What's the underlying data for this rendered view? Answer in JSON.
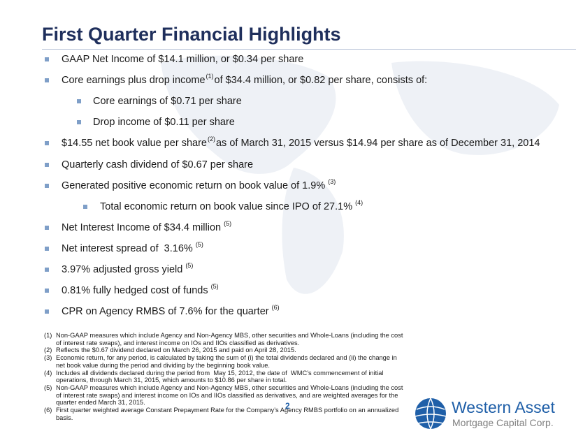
{
  "header": {
    "title": "First Quarter Financial Highlights"
  },
  "bullets": [
    {
      "text": "GAAP Net Income of $14.1 million, or $0.34 per share"
    },
    {
      "text": "Core earnings plus drop income",
      "note": "(1)",
      "rest": "of $34.4 million, or $0.82 per share, consists of:",
      "subs": [
        {
          "text": "Core earnings of $0.71 per share"
        },
        {
          "text": "Drop income of $0.11 per share"
        }
      ]
    },
    {
      "text": "$14.55 net book value per share",
      "note": "(2)",
      "rest": "as of March 31, 2015 versus $14.94 per share as of December 31, 2014"
    },
    {
      "text": "Quarterly cash dividend of $0.67 per share"
    },
    {
      "text": "Generated positive economic return on book value of 1.9%",
      "note": "(3)",
      "subs": [
        {
          "text": "Total economic return on book value since IPO of 27.1%",
          "note": "(4)"
        }
      ]
    },
    {
      "text": "Net Interest Income of $34.4 million",
      "note": "(5)"
    },
    {
      "text": "Net interest spread of  3.16%",
      "note": "(5)"
    },
    {
      "text": "3.97% adjusted gross yield",
      "note": "(5)"
    },
    {
      "text": "0.81% fully hedged cost of funds",
      "note": "(5)"
    },
    {
      "text": "CPR on Agency RMBS of 7.6% for the quarter",
      "note": "(6)"
    }
  ],
  "footnotes": [
    {
      "number": "(1)",
      "lines": [
        "Non-GAAP measures which include Agency and Non-Agency MBS, other securities and Whole-Loans (including the cost",
        "of interest rate swaps), and interest income on IOs and IIOs classified as derivatives."
      ]
    },
    {
      "number": "(2)",
      "lines": [
        "Reflects the $0.67 dividend declared on March 26, 2015 and paid on April 28, 2015."
      ]
    },
    {
      "number": "(3)",
      "lines": [
        "Economic return, for any period, is calculated by taking the sum of (i) the total dividends declared and (ii) the change in",
        "net book value during the period and dividing by the beginning book value."
      ]
    },
    {
      "number": "(4)",
      "lines": [
        "Includes all dividends declared during the period from  May 15, 2012, the date of  WMC’s commencement of initial",
        "operations, through March 31, 2015, which amounts to $10.86 per share in total."
      ]
    },
    {
      "number": "(5)",
      "lines": [
        "Non-GAAP measures which include Agency and Non-Agency MBS, other securities and Whole-Loans (including the cost",
        "of interest rate swaps) and interest income on IOs and IIOs classified as derivatives, and are weighted averages for the",
        "quarter ended March 31, 2015."
      ]
    },
    {
      "number": "(6)",
      "lines": [
        "First quarter weighted average Constant Prepayment Rate for the Company’s Agency RMBS portfolio on an annualized",
        "basis."
      ]
    }
  ],
  "page_number": "2",
  "logo": {
    "name": "Western Asset",
    "tagline": "Mortgage Capital Corp."
  }
}
